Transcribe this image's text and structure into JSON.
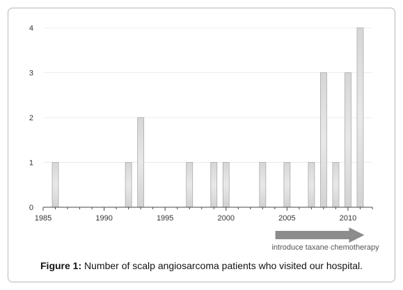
{
  "chart_data": {
    "type": "bar",
    "x": [
      1986,
      1992,
      1993,
      1997,
      1999,
      2000,
      2003,
      2005,
      2007,
      2008,
      2009,
      2010,
      2011
    ],
    "values": [
      1,
      1,
      2,
      1,
      1,
      1,
      1,
      1,
      1,
      3,
      1,
      3,
      4
    ],
    "xlim": [
      1985,
      2012
    ],
    "ylim": [
      0,
      4
    ],
    "xticks": [
      1985,
      1990,
      1995,
      2000,
      2005,
      2010
    ],
    "yticks": [
      0,
      1,
      2,
      3,
      4
    ],
    "grid": true,
    "bar_color": "#d9d9d9",
    "bar_edge_color": "#aaaaaa",
    "title": "",
    "xlabel": "",
    "ylabel": "",
    "annotation": {
      "text": "introduce  taxane  chemotherapy",
      "arrow_from": 2004.5,
      "arrow_to": 2011,
      "arrow_color": "#8c8c8c"
    }
  },
  "caption": {
    "label": "Figure 1:",
    "text": " Number of scalp angiosarcoma patients who visited our hospital."
  }
}
